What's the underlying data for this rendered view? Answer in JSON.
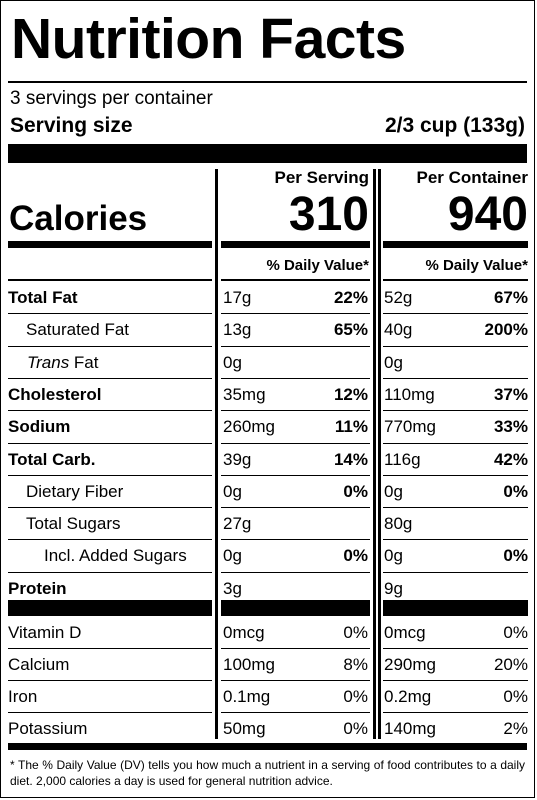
{
  "title": "Nutrition Facts",
  "servings_per_container": "3 servings per container",
  "serving_size_label": "Serving size",
  "serving_size_value": "2/3 cup (133g)",
  "per_serving_label": "Per Serving",
  "per_container_label": "Per Container",
  "calories_label": "Calories",
  "calories_per_serving": "310",
  "calories_per_container": "940",
  "dv_header": "% Daily Value*",
  "nutrients": [
    {
      "name": "Total Fat",
      "bold": true,
      "indent": 0,
      "serving_amt": "17g",
      "serving_pct": "22%",
      "container_amt": "52g",
      "container_pct": "67%"
    },
    {
      "name": "Saturated Fat",
      "bold": false,
      "indent": 1,
      "serving_amt": "13g",
      "serving_pct": "65%",
      "container_amt": "40g",
      "container_pct": "200%"
    },
    {
      "name_italic": "Trans",
      "name_rest": " Fat",
      "bold": false,
      "indent": 1,
      "serving_amt": "0g",
      "serving_pct": "",
      "container_amt": "0g",
      "container_pct": ""
    },
    {
      "name": "Cholesterol",
      "bold": true,
      "indent": 0,
      "serving_amt": "35mg",
      "serving_pct": "12%",
      "container_amt": "110mg",
      "container_pct": "37%"
    },
    {
      "name": "Sodium",
      "bold": true,
      "indent": 0,
      "serving_amt": "260mg",
      "serving_pct": "11%",
      "container_amt": "770mg",
      "container_pct": "33%"
    },
    {
      "name": "Total Carb.",
      "bold": true,
      "indent": 0,
      "serving_amt": "39g",
      "serving_pct": "14%",
      "container_amt": "116g",
      "container_pct": "42%"
    },
    {
      "name": "Dietary Fiber",
      "bold": false,
      "indent": 1,
      "serving_amt": "0g",
      "serving_pct": "0%",
      "container_amt": "0g",
      "container_pct": "0%"
    },
    {
      "name": "Total Sugars",
      "bold": false,
      "indent": 1,
      "serving_amt": "27g",
      "serving_pct": "",
      "container_amt": "80g",
      "container_pct": ""
    },
    {
      "name": "Incl. Added Sugars",
      "bold": false,
      "indent": 2,
      "serving_amt": "0g",
      "serving_pct": "0%",
      "container_amt": "0g",
      "container_pct": "0%"
    },
    {
      "name": "Protein",
      "bold": true,
      "indent": 0,
      "serving_amt": "3g",
      "serving_pct": "",
      "container_amt": "9g",
      "container_pct": ""
    }
  ],
  "vitamins": [
    {
      "name": "Vitamin D",
      "serving_amt": "0mcg",
      "serving_pct": "0%",
      "container_amt": "0mcg",
      "container_pct": "0%"
    },
    {
      "name": "Calcium",
      "serving_amt": "100mg",
      "serving_pct": "8%",
      "container_amt": "290mg",
      "container_pct": "20%"
    },
    {
      "name": "Iron",
      "serving_amt": "0.1mg",
      "serving_pct": "0%",
      "container_amt": "0.2mg",
      "container_pct": "0%"
    },
    {
      "name": "Potassium",
      "serving_amt": "50mg",
      "serving_pct": "0%",
      "container_amt": "140mg",
      "container_pct": "2%"
    }
  ],
  "footnote": "* The % Daily Value (DV) tells you how much a nutrient in a serving of food contributes to a daily diet. 2,000 calories a day is used for general nutrition advice."
}
